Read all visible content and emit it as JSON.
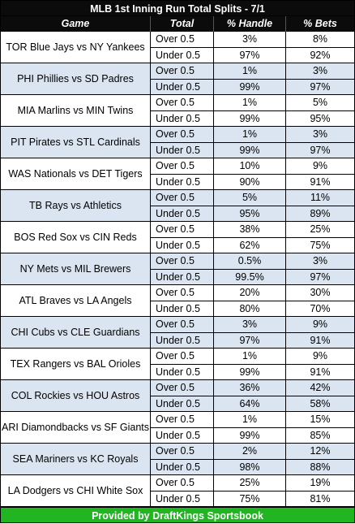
{
  "title": "MLB 1st Inning Run Total Splits - 7/1",
  "headers": {
    "game": "Game",
    "total": "Total",
    "handle": "% Handle",
    "bets": "% Bets"
  },
  "games": [
    {
      "name": "TOR Blue Jays vs NY Yankees",
      "rows": [
        {
          "total": "Over 0.5",
          "handle": "3%",
          "bets": "8%"
        },
        {
          "total": "Under 0.5",
          "handle": "97%",
          "bets": "92%"
        }
      ]
    },
    {
      "name": "PHI Phillies vs SD Padres",
      "rows": [
        {
          "total": "Over 0.5",
          "handle": "1%",
          "bets": "3%"
        },
        {
          "total": "Under 0.5",
          "handle": "99%",
          "bets": "97%"
        }
      ]
    },
    {
      "name": "MIA Marlins vs MIN Twins",
      "rows": [
        {
          "total": "Over 0.5",
          "handle": "1%",
          "bets": "5%"
        },
        {
          "total": "Under 0.5",
          "handle": "99%",
          "bets": "95%"
        }
      ]
    },
    {
      "name": "PIT Pirates vs STL Cardinals",
      "rows": [
        {
          "total": "Over 0.5",
          "handle": "1%",
          "bets": "3%"
        },
        {
          "total": "Under 0.5",
          "handle": "99%",
          "bets": "97%"
        }
      ]
    },
    {
      "name": "WAS Nationals vs DET Tigers",
      "rows": [
        {
          "total": "Over 0.5",
          "handle": "10%",
          "bets": "9%"
        },
        {
          "total": "Under 0.5",
          "handle": "90%",
          "bets": "91%"
        }
      ]
    },
    {
      "name": "TB Rays vs Athletics",
      "rows": [
        {
          "total": "Over 0.5",
          "handle": "5%",
          "bets": "11%"
        },
        {
          "total": "Under 0.5",
          "handle": "95%",
          "bets": "89%"
        }
      ]
    },
    {
      "name": "BOS Red Sox vs CIN Reds",
      "rows": [
        {
          "total": "Over 0.5",
          "handle": "38%",
          "bets": "25%"
        },
        {
          "total": "Under 0.5",
          "handle": "62%",
          "bets": "75%"
        }
      ]
    },
    {
      "name": "NY Mets vs MIL Brewers",
      "rows": [
        {
          "total": "Over 0.5",
          "handle": "0.5%",
          "bets": "3%"
        },
        {
          "total": "Under 0.5",
          "handle": "99.5%",
          "bets": "97%"
        }
      ]
    },
    {
      "name": "ATL Braves vs LA Angels",
      "rows": [
        {
          "total": "Over 0.5",
          "handle": "20%",
          "bets": "30%"
        },
        {
          "total": "Under 0.5",
          "handle": "80%",
          "bets": "70%"
        }
      ]
    },
    {
      "name": "CHI Cubs vs CLE Guardians",
      "rows": [
        {
          "total": "Over 0.5",
          "handle": "3%",
          "bets": "9%"
        },
        {
          "total": "Under 0.5",
          "handle": "97%",
          "bets": "91%"
        }
      ]
    },
    {
      "name": "TEX Rangers vs BAL Orioles",
      "rows": [
        {
          "total": "Over 0.5",
          "handle": "1%",
          "bets": "9%"
        },
        {
          "total": "Under 0.5",
          "handle": "99%",
          "bets": "91%"
        }
      ]
    },
    {
      "name": "COL Rockies vs HOU Astros",
      "rows": [
        {
          "total": "Over 0.5",
          "handle": "36%",
          "bets": "42%"
        },
        {
          "total": "Under 0.5",
          "handle": "64%",
          "bets": "58%"
        }
      ]
    },
    {
      "name": "ARI Diamondbacks vs SF Giants",
      "rows": [
        {
          "total": "Over 0.5",
          "handle": "1%",
          "bets": "15%"
        },
        {
          "total": "Under 0.5",
          "handle": "99%",
          "bets": "85%"
        }
      ]
    },
    {
      "name": "SEA Mariners vs KC Royals",
      "rows": [
        {
          "total": "Over 0.5",
          "handle": "2%",
          "bets": "12%"
        },
        {
          "total": "Under 0.5",
          "handle": "98%",
          "bets": "88%"
        }
      ]
    },
    {
      "name": "LA Dodgers vs CHI White Sox",
      "rows": [
        {
          "total": "Over 0.5",
          "handle": "25%",
          "bets": "19%"
        },
        {
          "total": "Under 0.5",
          "handle": "75%",
          "bets": "81%"
        }
      ]
    }
  ],
  "footer": "Provided by DraftKings Sportsbook",
  "colors": {
    "header_bg": "#0b0b0b",
    "alt_row_bg": "#dae5f1",
    "footer_bg": "#22b522"
  }
}
